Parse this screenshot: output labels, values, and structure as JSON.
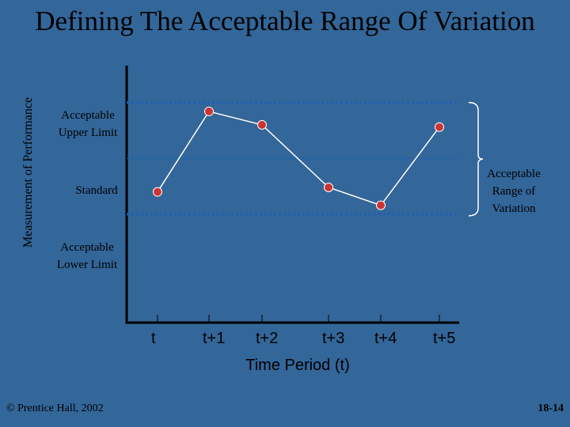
{
  "slide": {
    "title": "Defining The Acceptable Range Of Variation",
    "copyright": "© Prentice Hall, 2002",
    "page_number": "18-14"
  },
  "colors": {
    "background": "#336699",
    "limit_line": "#1F5FB5",
    "standard_line": "#1F5FB5",
    "data_line": "#FFFFFF",
    "marker_fill": "#CC3333",
    "marker_stroke": "#FFFFFF",
    "axis": "#000000",
    "bracket": "#FFFFFF"
  },
  "chart_data": {
    "type": "line",
    "title": "",
    "xlabel": "Time Period (t)",
    "ylabel": "Measurement of Performance",
    "categories": [
      "t",
      "t+1",
      "t+2",
      "t+3",
      "t+4",
      "t+5"
    ],
    "series": [
      {
        "points": [
          {
            "x": "t",
            "y": 0.2
          },
          {
            "x": "t+1",
            "y": 0.92
          },
          {
            "x": "t+2",
            "y": 0.8
          },
          {
            "x": "t+3",
            "y": 0.24
          },
          {
            "x": "t+4",
            "y": 0.08
          },
          {
            "x": "t+5",
            "y": 0.78
          }
        ]
      }
    ],
    "reference_lines": {
      "upper": {
        "label": "Acceptable Upper Limit",
        "value": 1
      },
      "standard": {
        "label": "Standard",
        "value": 0.5
      },
      "lower": {
        "label": "Acceptable Lower Limit",
        "value": 0
      }
    },
    "bracket_label": "Acceptable Range of Variation",
    "ylim": [
      -0.97,
      1.33
    ],
    "grid": false
  }
}
